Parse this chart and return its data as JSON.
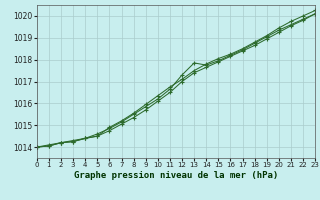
{
  "title": "Graphe pression niveau de la mer (hPa)",
  "bg_color": "#c8eeee",
  "grid_color": "#aacccc",
  "line_color": "#2d6b2d",
  "xlim": [
    0,
    23
  ],
  "ylim": [
    1013.5,
    1020.5
  ],
  "yticks": [
    1014,
    1015,
    1016,
    1017,
    1018,
    1019,
    1020
  ],
  "xticks": [
    0,
    1,
    2,
    3,
    4,
    5,
    6,
    7,
    8,
    9,
    10,
    11,
    12,
    13,
    14,
    15,
    16,
    17,
    18,
    19,
    20,
    21,
    22,
    23
  ],
  "series1_x": [
    0,
    1,
    2,
    3,
    4,
    5,
    6,
    7,
    8,
    9,
    10,
    11,
    12,
    13,
    14,
    15,
    16,
    17,
    18,
    19,
    20,
    21,
    22,
    23
  ],
  "series1_y": [
    1014.0,
    1014.1,
    1014.2,
    1014.3,
    1014.4,
    1014.5,
    1014.9,
    1015.2,
    1015.55,
    1015.95,
    1016.35,
    1016.75,
    1017.1,
    1017.5,
    1017.8,
    1018.05,
    1018.25,
    1018.5,
    1018.8,
    1019.1,
    1019.45,
    1019.75,
    1020.0,
    1020.25
  ],
  "series2_x": [
    0,
    1,
    2,
    3,
    4,
    5,
    6,
    7,
    8,
    9,
    10,
    11,
    12,
    13,
    14,
    15,
    16,
    17,
    18,
    19,
    20,
    21,
    22,
    23
  ],
  "series2_y": [
    1014.0,
    1014.05,
    1014.2,
    1014.25,
    1014.4,
    1014.6,
    1014.85,
    1015.15,
    1015.5,
    1015.85,
    1016.2,
    1016.65,
    1017.3,
    1017.85,
    1017.75,
    1017.95,
    1018.2,
    1018.45,
    1018.75,
    1019.05,
    1019.35,
    1019.6,
    1019.85,
    1020.1
  ],
  "series3_x": [
    0,
    1,
    2,
    3,
    4,
    5,
    6,
    7,
    8,
    9,
    10,
    11,
    12,
    13,
    14,
    15,
    16,
    17,
    18,
    19,
    20,
    21,
    22,
    23
  ],
  "series3_y": [
    1014.0,
    1014.05,
    1014.2,
    1014.25,
    1014.4,
    1014.5,
    1014.75,
    1015.05,
    1015.35,
    1015.7,
    1016.1,
    1016.5,
    1017.0,
    1017.4,
    1017.65,
    1017.9,
    1018.15,
    1018.4,
    1018.65,
    1018.95,
    1019.25,
    1019.55,
    1019.8,
    1020.1
  ]
}
